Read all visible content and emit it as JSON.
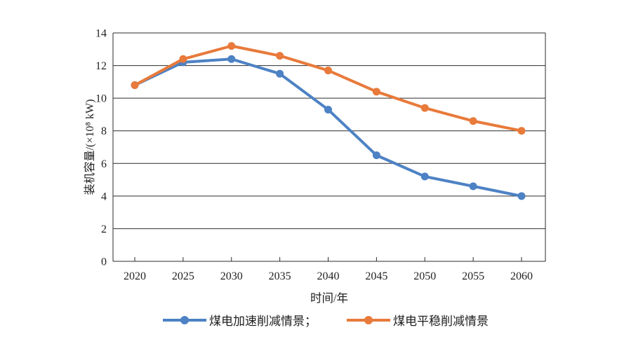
{
  "chart_data": {
    "type": "line",
    "x": [
      2020,
      2025,
      2030,
      2035,
      2040,
      2045,
      2050,
      2055,
      2060
    ],
    "series": [
      {
        "name": "煤电加速削减情景",
        "legend_label": "煤电加速削减情景；",
        "color": "#4D82C4",
        "values": [
          10.8,
          12.2,
          12.4,
          11.5,
          9.3,
          6.5,
          5.2,
          4.6,
          4.0
        ]
      },
      {
        "name": "煤电平稳削减情景",
        "legend_label": "煤电平稳削减情景",
        "color": "#E87A3B",
        "values": [
          10.8,
          12.4,
          13.2,
          12.6,
          11.7,
          10.4,
          9.4,
          8.6,
          8.0
        ]
      }
    ],
    "xlabel": "时间/年",
    "ylabel": "装机容量/(×10⁸ kW)",
    "ylim": [
      0,
      14
    ],
    "ytick_step": 2,
    "grid": "horizontal",
    "legend_position": "bottom"
  },
  "colors": {
    "axis": "#2b2b2b",
    "text": "#1f1f1f",
    "background": "#ffffff"
  }
}
